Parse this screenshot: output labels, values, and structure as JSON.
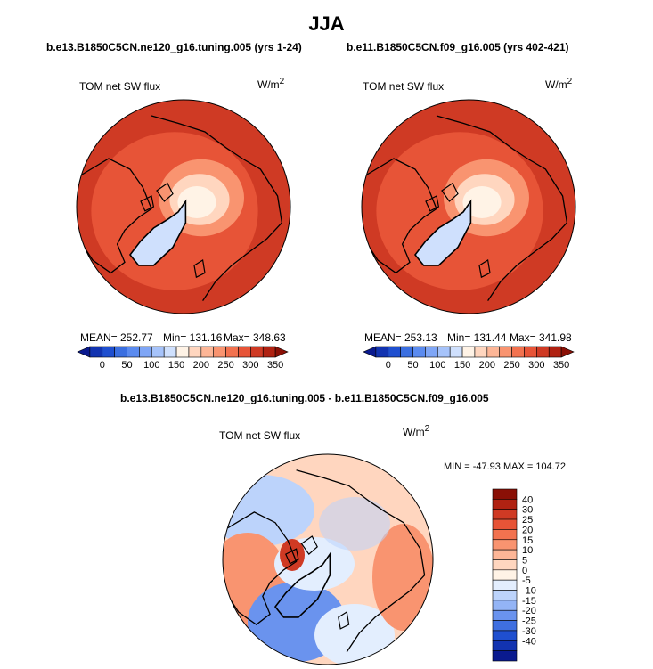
{
  "figure": {
    "title": "JJA",
    "colors": {
      "land_outline": "#000000",
      "background": "#ffffff"
    }
  },
  "chart_data": [
    {
      "type": "heatmap",
      "projection": "north-polar-stereographic",
      "case_label": "b.e13.B1850C5CN.ne120_g16.tuning.005 (yrs 1-24)",
      "title": "TOM net SW flux",
      "units": "W/m",
      "units_sup": "2",
      "stats": {
        "mean_label": "MEAN= 252.77",
        "min_label": "Min= 131.16",
        "max_label": "Max= 348.63"
      },
      "colorbar": {
        "orientation": "horizontal",
        "ticks": [
          "0",
          "50",
          "100",
          "150",
          "200",
          "250",
          "300",
          "350"
        ],
        "levels": [
          -25,
          0,
          25,
          50,
          75,
          100,
          125,
          150,
          175,
          200,
          225,
          250,
          275,
          300,
          325,
          350
        ],
        "colors": [
          "#0a1a8f",
          "#1233b0",
          "#1f4fcf",
          "#3b6fe0",
          "#5b8bef",
          "#7fa6f6",
          "#a6c3fa",
          "#cfe0fd",
          "#fff3e6",
          "#ffd6bf",
          "#fdb697",
          "#f99470",
          "#f2724f",
          "#e75437",
          "#cf3a24",
          "#b02212",
          "#8a1006"
        ]
      },
      "field": {
        "polar_cap_value": 160,
        "greenland_value": 140,
        "midlat_value": 295,
        "outer_value": 315
      }
    },
    {
      "type": "heatmap",
      "projection": "north-polar-stereographic",
      "case_label": "b.e11.B1850C5CN.f09_g16.005 (yrs 402-421)",
      "title": "TOM net SW flux",
      "units": "W/m",
      "units_sup": "2",
      "stats": {
        "mean_label": "MEAN= 253.13",
        "min_label": "Min= 131.44",
        "max_label": "Max= 341.98"
      },
      "colorbar": {
        "orientation": "horizontal",
        "ticks": [
          "0",
          "50",
          "100",
          "150",
          "200",
          "250",
          "300",
          "350"
        ],
        "levels": [
          -25,
          0,
          25,
          50,
          75,
          100,
          125,
          150,
          175,
          200,
          225,
          250,
          275,
          300,
          325,
          350
        ],
        "colors": [
          "#0a1a8f",
          "#1233b0",
          "#1f4fcf",
          "#3b6fe0",
          "#5b8bef",
          "#7fa6f6",
          "#a6c3fa",
          "#cfe0fd",
          "#fff3e6",
          "#ffd6bf",
          "#fdb697",
          "#f99470",
          "#f2724f",
          "#e75437",
          "#cf3a24",
          "#b02212",
          "#8a1006"
        ]
      },
      "field": {
        "polar_cap_value": 165,
        "greenland_value": 140,
        "midlat_value": 295,
        "outer_value": 312
      }
    },
    {
      "type": "heatmap",
      "projection": "north-polar-stereographic",
      "case_label": "b.e13.B1850C5CN.ne120_g16.tuning.005 - b.e11.B1850C5CN.f09_g16.005",
      "title": "TOM net SW flux",
      "units": "W/m",
      "units_sup": "2",
      "stats": {
        "minmax_label": "MIN = -47.93  MAX = 104.72"
      },
      "colorbar": {
        "orientation": "vertical",
        "ticks": [
          "40",
          "30",
          "25",
          "20",
          "15",
          "10",
          "5",
          "0",
          "-5",
          "-10",
          "-15",
          "-20",
          "-25",
          "-30",
          "-40"
        ],
        "colors": [
          "#8a1006",
          "#b02212",
          "#cf3a24",
          "#e75437",
          "#f2724f",
          "#f99470",
          "#fdb697",
          "#ffd6bf",
          "#fff3e6",
          "#e3eefe",
          "#bcd3fb",
          "#93b4f6",
          "#6a93ee",
          "#3f6fe0",
          "#1f4fcf",
          "#1233b0",
          "#0a1a8f"
        ]
      },
      "field": {
        "arctic_value": 2,
        "siberia_value": -22,
        "north_america_value": -12,
        "atlantic_value": 12,
        "pacific_value": 10
      }
    }
  ]
}
